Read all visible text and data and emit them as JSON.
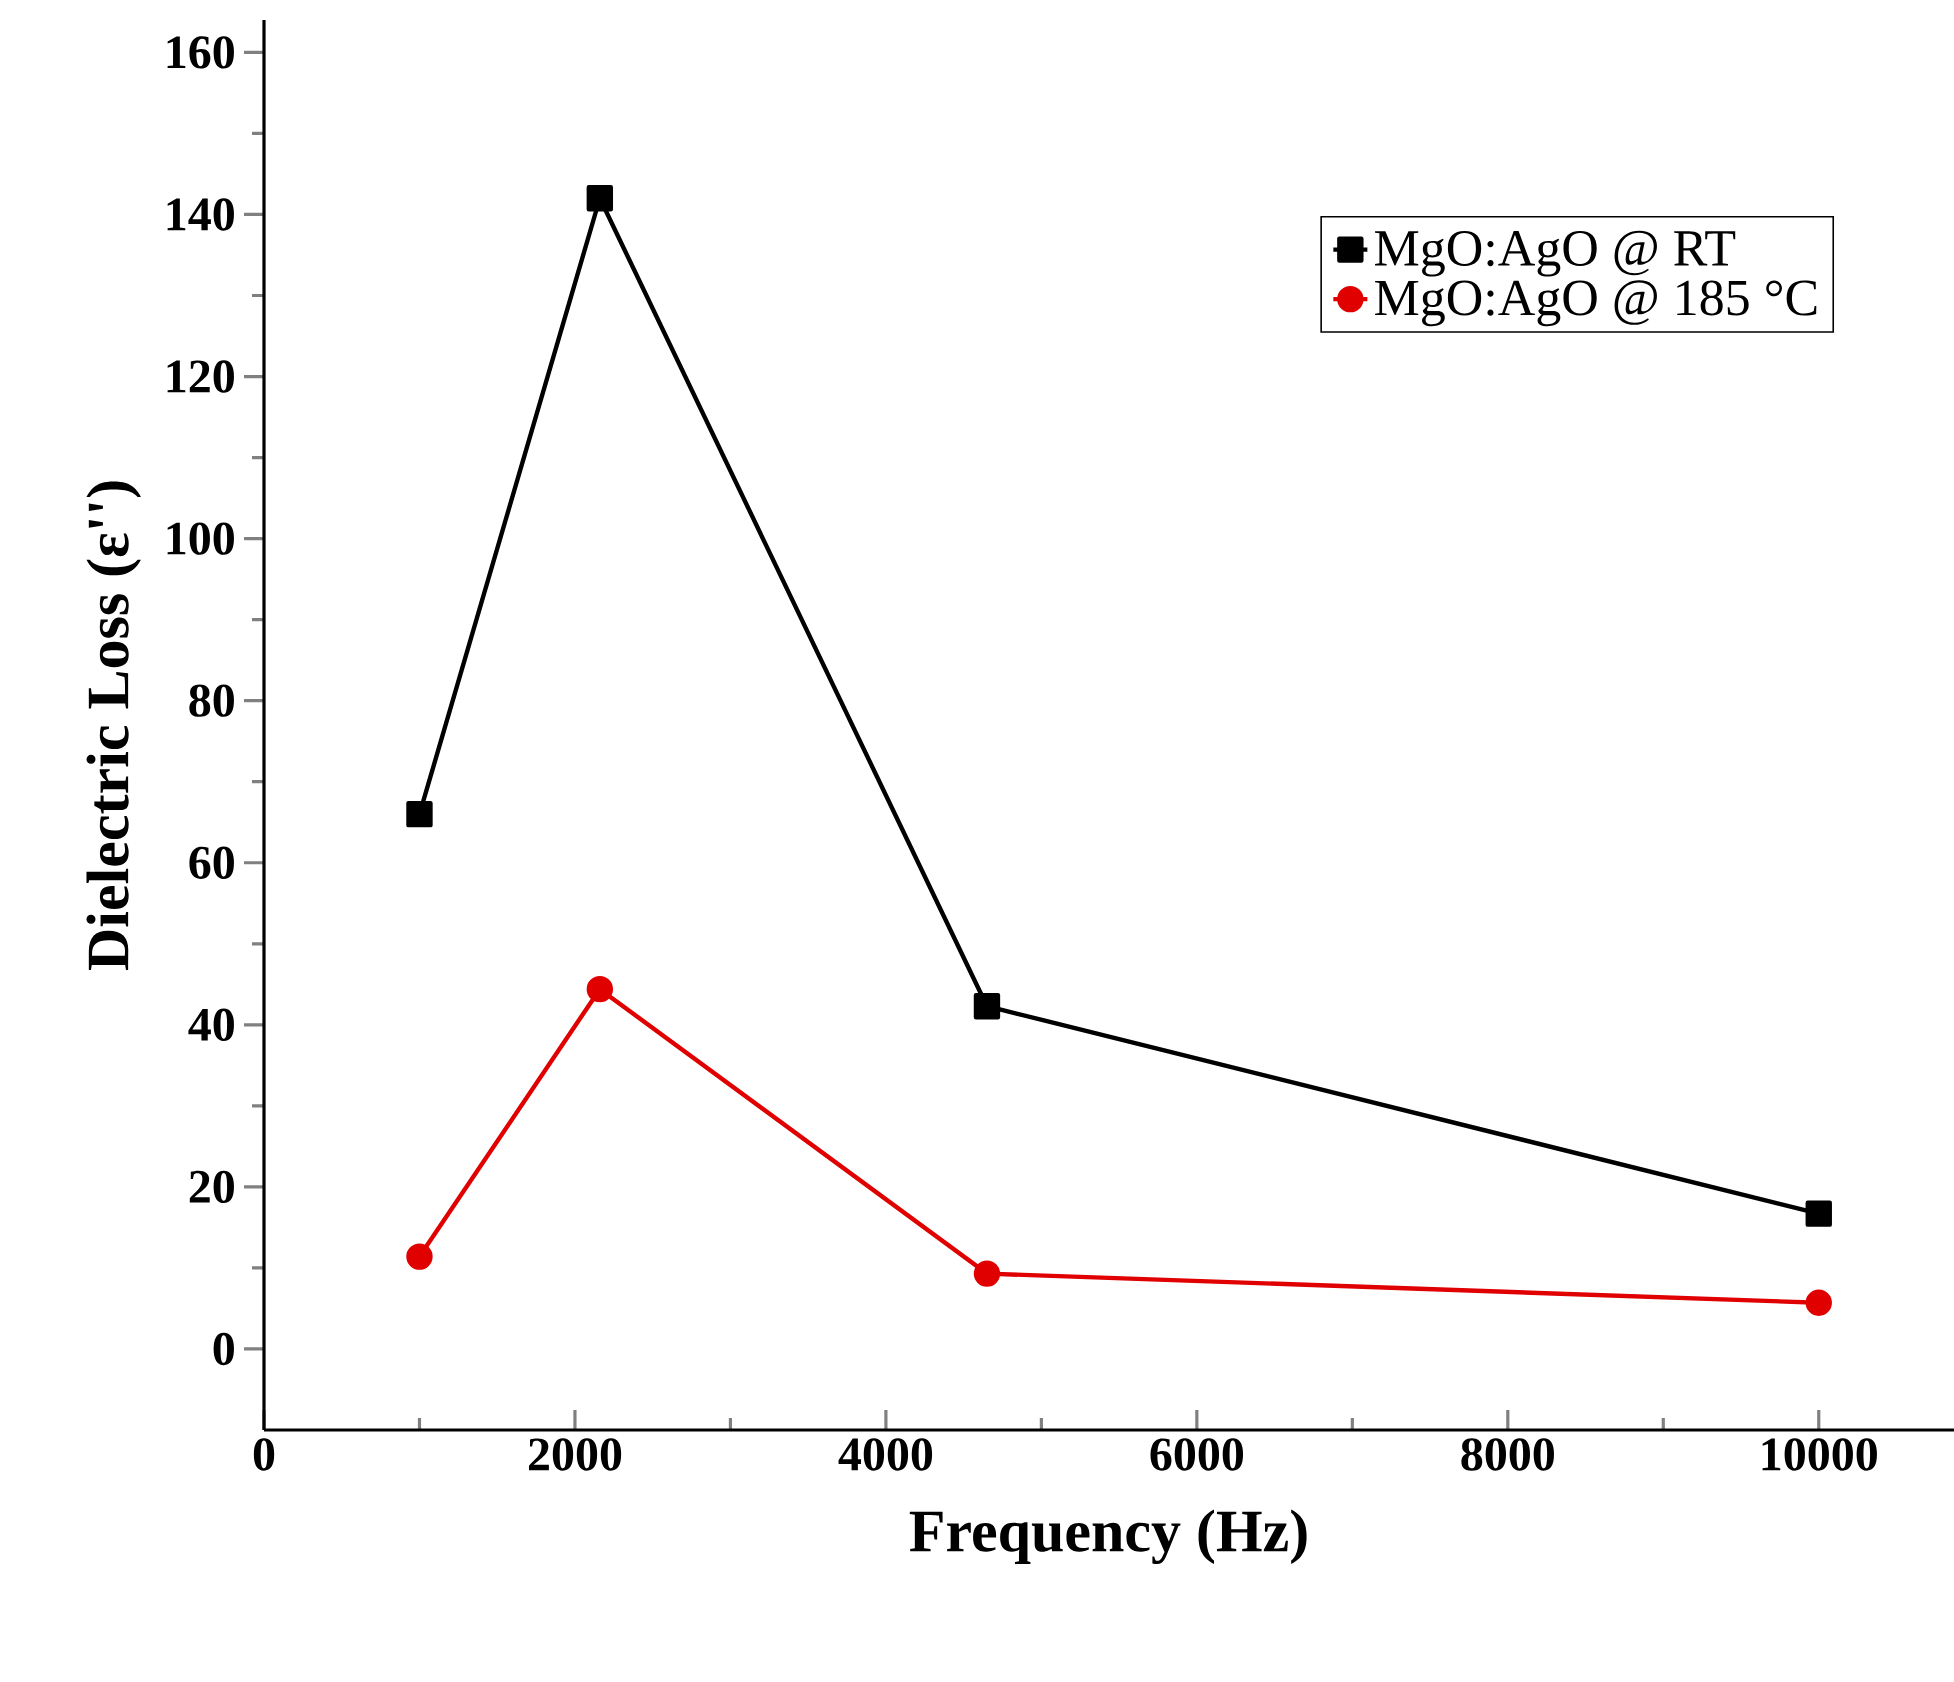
{
  "chart_data": {
    "type": "line",
    "xlabel": "Frequency (Hz)",
    "ylabel": "Dielectric Loss (ε'')",
    "x": [
      1000,
      2160,
      4650,
      10000
    ],
    "series": [
      {
        "name": "MgO:AgO @ RT",
        "color": "#000000",
        "marker": "square",
        "values": [
          66,
          142,
          42.3,
          16.7
        ]
      },
      {
        "name": "MgO:AgO @ 185 °C",
        "color": "#e00000",
        "marker": "circle",
        "values": [
          11.4,
          44.4,
          9.3,
          5.7
        ]
      }
    ],
    "xlim": [
      0,
      10870
    ],
    "ylim": [
      -10,
      164
    ],
    "xticks": [
      0,
      2000,
      4000,
      6000,
      8000,
      10000
    ],
    "yticks": [
      0,
      20,
      40,
      60,
      80,
      100,
      120,
      140,
      160
    ],
    "grid": false,
    "legend": "top right",
    "line_style": "solid"
  }
}
